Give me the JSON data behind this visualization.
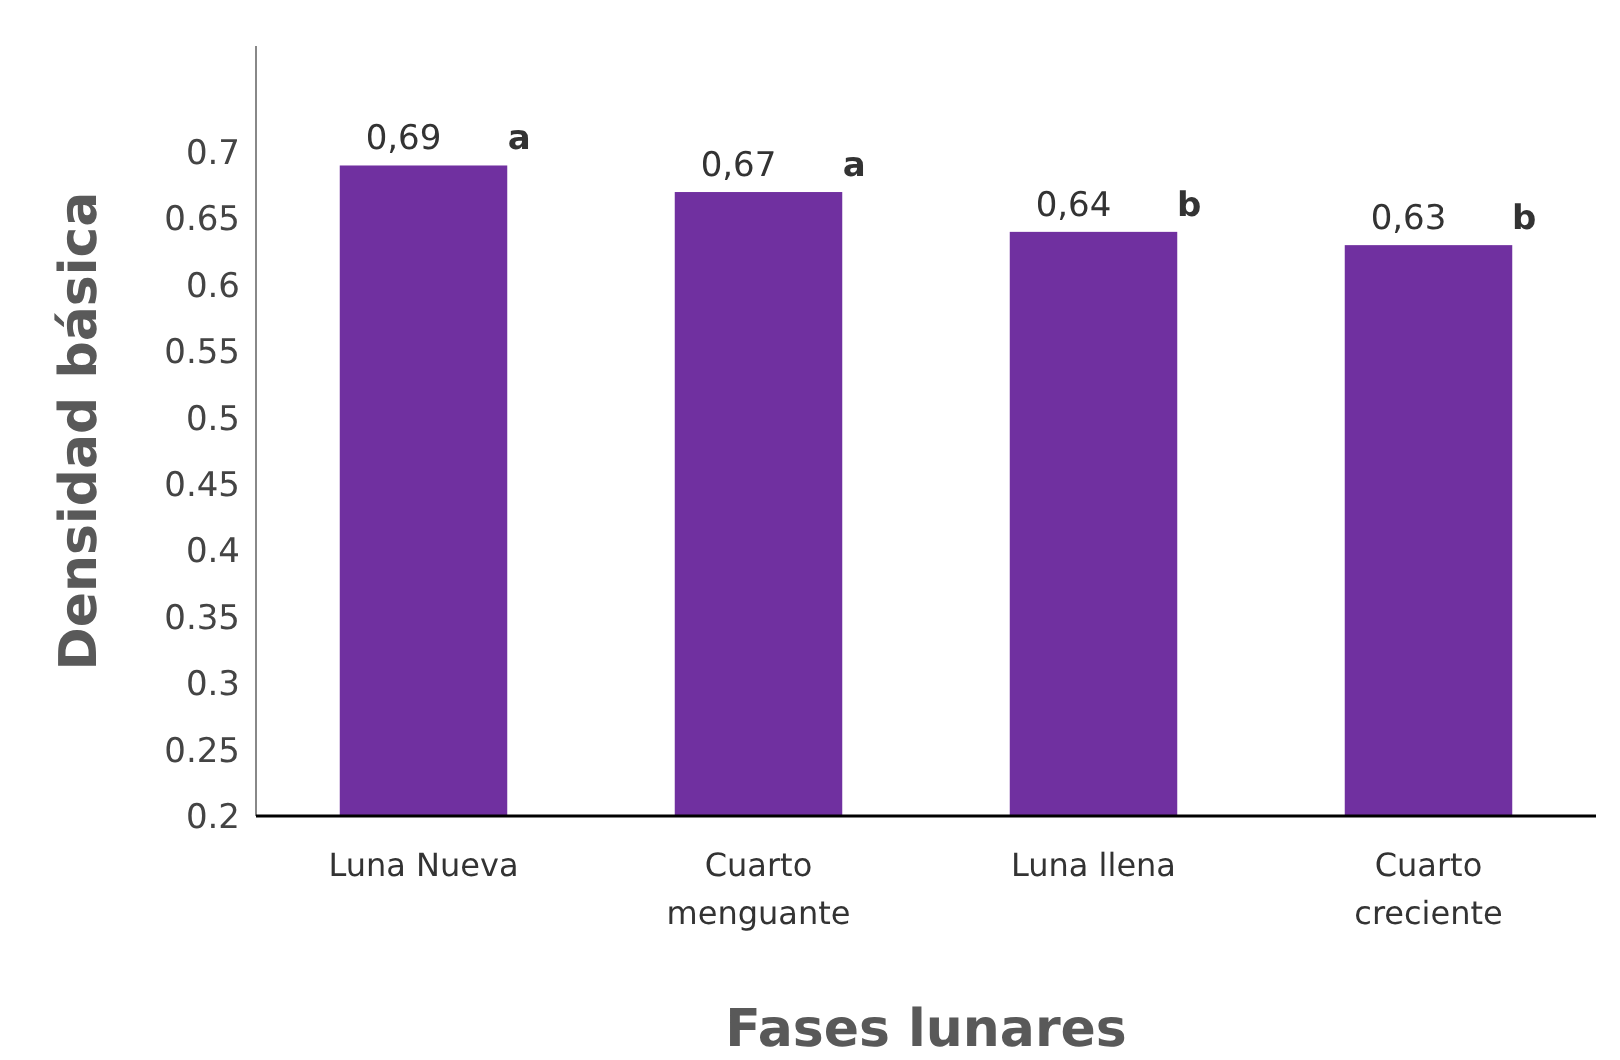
{
  "chart_data": {
    "type": "bar",
    "xlabel": "Fases lunares",
    "ylabel": "Densidad básica",
    "categories": [
      "Luna Nueva",
      "Cuarto menguante",
      "Luna llena",
      "Cuarto creciente"
    ],
    "values": [
      0.69,
      0.67,
      0.64,
      0.63
    ],
    "value_labels": [
      "0,69",
      "0,67",
      "0,64",
      "0,63"
    ],
    "color": "#7030a0",
    "ylim": [
      0.2,
      0.78
    ],
    "yticks": [
      0.2,
      0.25,
      0.3,
      0.35,
      0.4,
      0.45,
      0.5,
      0.55,
      0.6,
      0.65,
      0.7
    ],
    "annotations": [
      {
        "text": "a",
        "x": "Luna Nueva",
        "y": 0.69
      },
      {
        "text": "a",
        "x": "Cuarto menguante",
        "y": 0.67
      },
      {
        "text": "b",
        "x": "Luna llena",
        "y": 0.64
      },
      {
        "text": "b",
        "x": "Cuarto creciente",
        "y": 0.63
      }
    ]
  }
}
